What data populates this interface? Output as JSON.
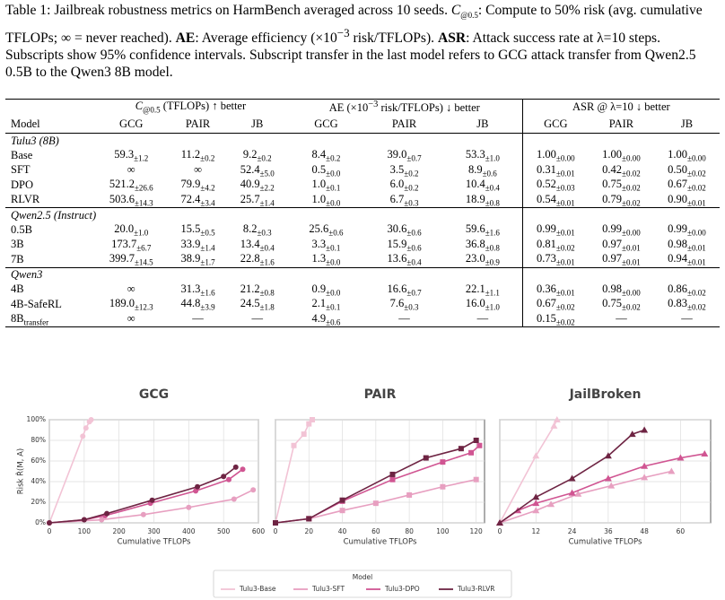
{
  "caption": [
    {
      "t": "Table 1: Jailbreak robustness metrics on HarmBench averaged across 10 seeds. "
    },
    {
      "t": "C",
      "style": "italic"
    },
    {
      "t": "@0.5",
      "style": "sub"
    },
    {
      "t": ": Compute to 50% risk (avg. cumulative TFLOPs; ∞ = never reached). "
    },
    {
      "t": "AE",
      "style": "bold"
    },
    {
      "t": ": Average efficiency (×10"
    },
    {
      "t": "−3",
      "style": "sup"
    },
    {
      "t": " risk/TFLOPs). "
    },
    {
      "t": "ASR",
      "style": "bold"
    },
    {
      "t": ": Attack success rate at λ=10 steps. Subscripts show 95% confidence intervals. Subscript transfer in the last model refers to GCG attack transfer from Qwen2.5 0.5B to the Qwen3 8B model."
    }
  ],
  "table": {
    "groups": [
      [
        {
          "t": "C",
          "style": "italic"
        },
        {
          "t": "@0.5",
          "style": "sub"
        },
        {
          "t": " (TFLOPs) ↑ better"
        }
      ],
      [
        {
          "t": "AE (×10"
        },
        {
          "t": "−3",
          "style": "sup"
        },
        {
          "t": " risk/TFLOPs) ↓ better"
        }
      ],
      [
        {
          "t": "ASR @ λ=10 ↓ better"
        }
      ]
    ],
    "columns": [
      "Model",
      "GCG",
      "PAIR",
      "JB",
      "GCG",
      "PAIR",
      "JB",
      "GCG",
      "PAIR",
      "JB"
    ],
    "sections": [
      {
        "title": "Tulu3 (8B)",
        "rows": [
          {
            "label": "Base",
            "cells": [
              [
                "59.3",
                "±1.2"
              ],
              [
                "11.2",
                "±0.2"
              ],
              [
                "9.2",
                "±0.2"
              ],
              [
                "8.4",
                "±0.2"
              ],
              [
                "39.0",
                "±0.7"
              ],
              [
                "53.3",
                "±1.0"
              ],
              [
                "1.00",
                "±0.00"
              ],
              [
                "1.00",
                "±0.00"
              ],
              [
                "1.00",
                "±0.00"
              ]
            ]
          },
          {
            "label": "SFT",
            "cells": [
              "∞",
              "∞",
              [
                "52.4",
                "±5.0"
              ],
              [
                "0.5",
                "±0.0"
              ],
              [
                "3.5",
                "±0.2"
              ],
              [
                "8.9",
                "±0.6"
              ],
              [
                "0.31",
                "±0.01"
              ],
              [
                "0.42",
                "±0.02"
              ],
              [
                "0.50",
                "±0.02"
              ]
            ]
          },
          {
            "label": "DPO",
            "cells": [
              [
                "521.2",
                "±26.6"
              ],
              [
                "79.9",
                "±4.2"
              ],
              [
                "40.9",
                "±2.2"
              ],
              [
                "1.0",
                "±0.1"
              ],
              [
                "6.0",
                "±0.2"
              ],
              [
                "10.4",
                "±0.4"
              ],
              [
                "0.52",
                "±0.03"
              ],
              [
                "0.75",
                "±0.02"
              ],
              [
                "0.67",
                "±0.02"
              ]
            ]
          },
          {
            "label": "RLVR",
            "cells": [
              [
                "503.6",
                "±14.3"
              ],
              [
                "72.4",
                "±3.4"
              ],
              [
                "25.7",
                "±1.4"
              ],
              [
                "1.0",
                "±0.0"
              ],
              [
                "6.7",
                "±0.3"
              ],
              [
                "18.9",
                "±0.8"
              ],
              [
                "0.54",
                "±0.01"
              ],
              [
                "0.79",
                "±0.02"
              ],
              [
                "0.90",
                "±0.01"
              ]
            ]
          }
        ]
      },
      {
        "title": "Qwen2.5 (Instruct)",
        "rows": [
          {
            "label": "0.5B",
            "cells": [
              [
                "20.0",
                "±1.0"
              ],
              [
                "15.5",
                "±0.5"
              ],
              [
                "8.2",
                "±0.3"
              ],
              [
                "25.6",
                "±0.6"
              ],
              [
                "30.6",
                "±0.6"
              ],
              [
                "59.6",
                "±1.6"
              ],
              [
                "0.99",
                "±0.01"
              ],
              [
                "0.99",
                "±0.00"
              ],
              [
                "0.99",
                "±0.00"
              ]
            ]
          },
          {
            "label": "3B",
            "cells": [
              [
                "173.7",
                "±6.7"
              ],
              [
                "33.9",
                "±1.4"
              ],
              [
                "13.4",
                "±0.4"
              ],
              [
                "3.3",
                "±0.1"
              ],
              [
                "15.9",
                "±0.6"
              ],
              [
                "36.8",
                "±0.8"
              ],
              [
                "0.81",
                "±0.02"
              ],
              [
                "0.97",
                "±0.01"
              ],
              [
                "0.98",
                "±0.01"
              ]
            ]
          },
          {
            "label": "7B",
            "cells": [
              [
                "399.7",
                "±14.5"
              ],
              [
                "38.9",
                "±1.7"
              ],
              [
                "22.8",
                "±1.6"
              ],
              [
                "1.3",
                "±0.0"
              ],
              [
                "13.6",
                "±0.4"
              ],
              [
                "23.0",
                "±0.9"
              ],
              [
                "0.73",
                "±0.01"
              ],
              [
                "0.97",
                "±0.01"
              ],
              [
                "0.94",
                "±0.01"
              ]
            ]
          }
        ]
      },
      {
        "title": "Qwen3",
        "rows": [
          {
            "label": "4B",
            "cells": [
              "∞",
              [
                "31.3",
                "±1.6"
              ],
              [
                "21.2",
                "±0.8"
              ],
              [
                "0.9",
                "±0.0"
              ],
              [
                "16.6",
                "±0.7"
              ],
              [
                "22.1",
                "±1.1"
              ],
              [
                "0.36",
                "±0.01"
              ],
              [
                "0.98",
                "±0.00"
              ],
              [
                "0.86",
                "±0.02"
              ]
            ]
          },
          {
            "label": "4B-SafeRL",
            "cells": [
              [
                "189.0",
                "±12.3"
              ],
              [
                "44.8",
                "±3.9"
              ],
              [
                "24.5",
                "±1.8"
              ],
              [
                "2.1",
                "±0.1"
              ],
              [
                "7.6",
                "±0.3"
              ],
              [
                "16.0",
                "±1.0"
              ],
              [
                "0.67",
                "±0.02"
              ],
              [
                "0.75",
                "±0.02"
              ],
              [
                "0.83",
                "±0.02"
              ]
            ]
          },
          {
            "label": [
              "8B",
              "transfer"
            ],
            "cells": [
              "∞",
              "—",
              "—",
              [
                "4.9",
                "±0.6"
              ],
              "—",
              "—",
              [
                "0.15",
                "±0.02"
              ],
              "—",
              "—"
            ]
          }
        ]
      }
    ]
  },
  "legend_title": "Model",
  "chart_data": [
    {
      "type": "line",
      "title": "GCG",
      "xlabel": "Cumulative TFLOPs",
      "ylabel": "Risk R̂(M, A)",
      "marker": "circle",
      "grid": true,
      "xlim": [
        0,
        600
      ],
      "xticks": [
        0,
        100,
        200,
        300,
        400,
        500,
        600
      ],
      "ylim": [
        0,
        100
      ],
      "yticks": [
        {
          "value": 0,
          "label": "0%"
        },
        {
          "value": 20,
          "label": "20%"
        },
        {
          "value": 40,
          "label": "40%"
        },
        {
          "value": 60,
          "label": "60%"
        },
        {
          "value": 80,
          "label": "80%"
        },
        {
          "value": 100,
          "label": "100%"
        }
      ],
      "series": [
        {
          "name": "Tulu3-Base",
          "color": "#f2c3d5",
          "x": [
            0,
            96,
            105,
            115,
            120
          ],
          "values": [
            0,
            84,
            92,
            98,
            100
          ]
        },
        {
          "name": "Tulu3-SFT",
          "color": "#e79fc0",
          "x": [
            0,
            150,
            270,
            400,
            530,
            585
          ],
          "values": [
            0,
            3,
            8,
            15,
            23,
            32
          ]
        },
        {
          "name": "Tulu3-DPO",
          "color": "#d05592",
          "x": [
            0,
            100,
            160,
            290,
            420,
            515,
            555
          ],
          "values": [
            0,
            3,
            7,
            19,
            31,
            42,
            52
          ]
        },
        {
          "name": "Tulu3-RLVR",
          "color": "#6e2443",
          "x": [
            0,
            100,
            165,
            295,
            425,
            500,
            535
          ],
          "values": [
            0,
            3,
            9,
            22,
            35,
            45,
            54
          ]
        }
      ]
    },
    {
      "type": "line",
      "title": "PAIR",
      "xlabel": "Cumulative TFLOPs",
      "marker": "square",
      "grid": true,
      "show_ytick_labels": false,
      "xlim": [
        0,
        125
      ],
      "xticks": [
        0,
        20,
        40,
        60,
        80,
        100,
        120
      ],
      "ylim": [
        0,
        100
      ],
      "yticks": [
        0,
        20,
        40,
        60,
        80,
        100
      ],
      "series": [
        {
          "name": "Tulu3-Base",
          "color": "#f2c3d5",
          "x": [
            0,
            11,
            17,
            20,
            22
          ],
          "values": [
            0,
            75,
            86,
            96,
            100
          ]
        },
        {
          "name": "Tulu3-SFT",
          "color": "#e79fc0",
          "x": [
            0,
            20,
            40,
            60,
            80,
            100,
            120
          ],
          "values": [
            0,
            4,
            12,
            19,
            27,
            35,
            42
          ]
        },
        {
          "name": "Tulu3-DPO",
          "color": "#d05592",
          "x": [
            0,
            20,
            40,
            70,
            100,
            117,
            122
          ],
          "values": [
            0,
            4,
            21,
            42,
            59,
            68,
            75
          ]
        },
        {
          "name": "Tulu3-RLVR",
          "color": "#6e2443",
          "x": [
            0,
            20,
            40,
            70,
            90,
            111,
            120
          ],
          "values": [
            0,
            4,
            22,
            47,
            63,
            72,
            80
          ]
        }
      ]
    },
    {
      "type": "line",
      "title": "JailBroken",
      "xlabel": "Cumulative TFLOPs",
      "marker": "triangle",
      "grid": true,
      "show_ytick_labels": false,
      "xlim": [
        0,
        70
      ],
      "xticks": [
        0,
        12,
        24,
        36,
        48,
        60
      ],
      "ylim": [
        0,
        100
      ],
      "yticks": [
        0,
        20,
        40,
        60,
        80,
        100
      ],
      "series": [
        {
          "name": "Tulu3-Base",
          "color": "#f2c3d5",
          "x": [
            0,
            12,
            18,
            19
          ],
          "values": [
            0,
            65,
            94,
            100
          ]
        },
        {
          "name": "Tulu3-SFT",
          "color": "#e79fc0",
          "x": [
            0,
            12,
            17,
            26,
            37,
            48,
            57
          ],
          "values": [
            0,
            12,
            18,
            28,
            36,
            44,
            50
          ]
        },
        {
          "name": "Tulu3-DPO",
          "color": "#d05592",
          "x": [
            0,
            6,
            12,
            24,
            36,
            48,
            60,
            68
          ],
          "values": [
            0,
            12,
            19,
            29,
            43,
            55,
            63,
            67
          ]
        },
        {
          "name": "Tulu3-RLVR",
          "color": "#6e2443",
          "x": [
            0,
            12,
            24,
            36,
            44,
            48
          ],
          "values": [
            0,
            25,
            43,
            65,
            86,
            90
          ]
        }
      ]
    }
  ]
}
